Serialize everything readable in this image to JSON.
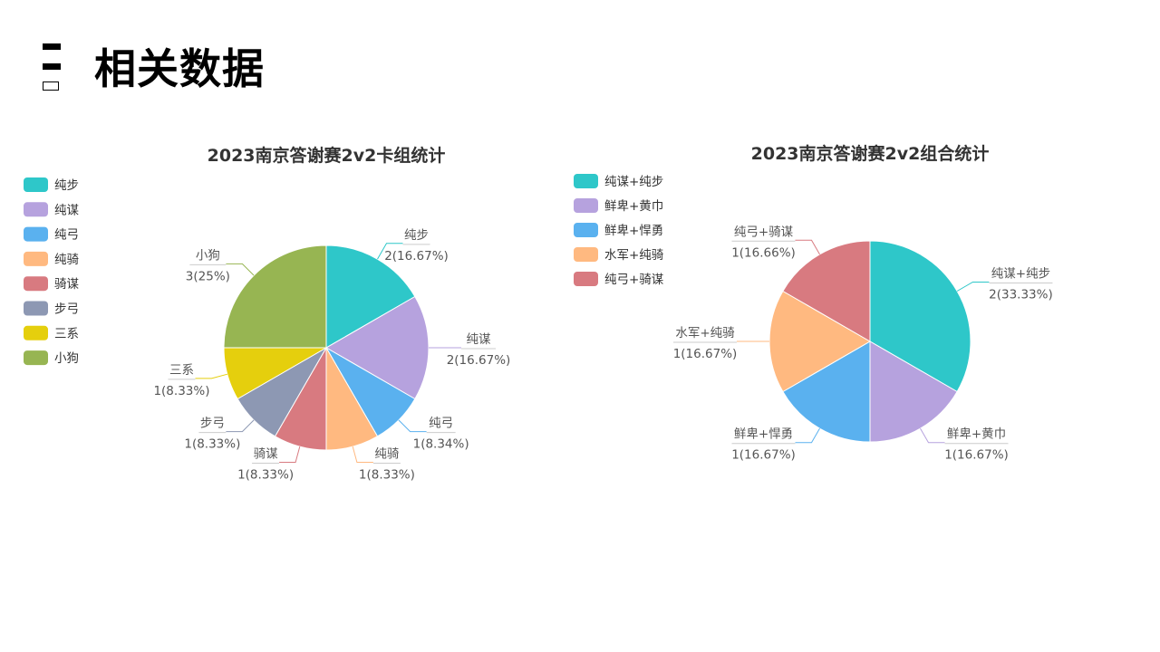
{
  "page": {
    "title": "相关数据"
  },
  "colors": {
    "text": "#333333",
    "label": "#555555",
    "leader_underline": "#cccccc"
  },
  "chart_data": [
    {
      "type": "pie",
      "title": "2023南京答谢赛2v2卡组统计",
      "legend_position": "left",
      "start_angle_deg": 0,
      "direction": "clockwise",
      "slices": [
        {
          "name": "纯步",
          "value": 2,
          "label": "2(16.67%)",
          "color": "#2ec7c9"
        },
        {
          "name": "纯谋",
          "value": 2,
          "label": "2(16.67%)",
          "color": "#b6a2de"
        },
        {
          "name": "纯弓",
          "value": 1,
          "label": "1(8.34%)",
          "color": "#5ab1ef"
        },
        {
          "name": "纯骑",
          "value": 1,
          "label": "1(8.33%)",
          "color": "#ffb980"
        },
        {
          "name": "骑谋",
          "value": 1,
          "label": "1(8.33%)",
          "color": "#d87a80"
        },
        {
          "name": "步弓",
          "value": 1,
          "label": "1(8.33%)",
          "color": "#8d98b3"
        },
        {
          "name": "三系",
          "value": 1,
          "label": "1(8.33%)",
          "color": "#e5cf0d"
        },
        {
          "name": "小狗",
          "value": 3,
          "label": "3(25%)",
          "color": "#97b552"
        }
      ]
    },
    {
      "type": "pie",
      "title": "2023南京答谢赛2v2组合统计",
      "legend_position": "left",
      "start_angle_deg": 0,
      "direction": "clockwise",
      "slices": [
        {
          "name": "纯谋+纯步",
          "value": 2,
          "label": "2(33.33%)",
          "color": "#2ec7c9"
        },
        {
          "name": "鲜卑+黄巾",
          "value": 1,
          "label": "1(16.67%)",
          "color": "#b6a2de"
        },
        {
          "name": "鲜卑+悍勇",
          "value": 1,
          "label": "1(16.67%)",
          "color": "#5ab1ef"
        },
        {
          "name": "水军+纯骑",
          "value": 1,
          "label": "1(16.67%)",
          "color": "#ffb980"
        },
        {
          "name": "纯弓+骑谋",
          "value": 1,
          "label": "1(16.66%)",
          "color": "#d87a80"
        }
      ]
    }
  ]
}
